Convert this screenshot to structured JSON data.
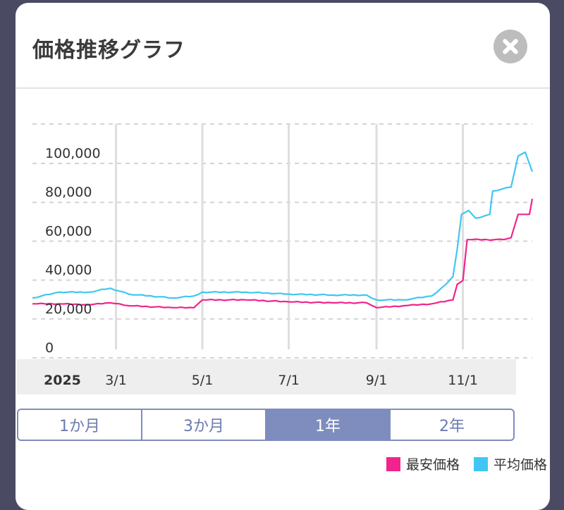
{
  "modal": {
    "title": "価格推移グラフ",
    "close_icon": "close-icon"
  },
  "range_tabs": [
    {
      "label": "1か月",
      "active": false
    },
    {
      "label": "3か月",
      "active": false
    },
    {
      "label": "1年",
      "active": true
    },
    {
      "label": "2年",
      "active": false
    }
  ],
  "legend": [
    {
      "label": "最安価格",
      "color": "#f0248c"
    },
    {
      "label": "平均価格",
      "color": "#41c6f3"
    }
  ],
  "chart_data": {
    "type": "line",
    "year_label": "2025",
    "x_ticks": [
      "3/1",
      "5/1",
      "7/1",
      "9/1",
      "11/1"
    ],
    "y_ticks": [
      "100,000",
      "80,000",
      "60,000",
      "40,000",
      "20,000",
      "0"
    ],
    "ylim": [
      0,
      110000
    ],
    "xlim": [
      "2025-01-01",
      "2025-12-20"
    ],
    "grid": true,
    "legend_position": "bottom-right",
    "series": [
      {
        "name": "最安価格",
        "color": "#f0248c",
        "points": [
          [
            "2025-01-01",
            22000
          ],
          [
            "2025-01-20",
            22000
          ],
          [
            "2025-02-10",
            21500
          ],
          [
            "2025-02-25",
            22500
          ],
          [
            "2025-03-10",
            21000
          ],
          [
            "2025-04-10",
            20000
          ],
          [
            "2025-04-25",
            20000
          ],
          [
            "2025-05-01",
            24000
          ],
          [
            "2025-06-01",
            24000
          ],
          [
            "2025-07-01",
            23000
          ],
          [
            "2025-08-01",
            22500
          ],
          [
            "2025-08-25",
            22500
          ],
          [
            "2025-09-01",
            20000
          ],
          [
            "2025-09-20",
            21000
          ],
          [
            "2025-10-10",
            22000
          ],
          [
            "2025-10-25",
            24000
          ],
          [
            "2025-10-28",
            32000
          ],
          [
            "2025-11-01",
            34000
          ],
          [
            "2025-11-04",
            55000
          ],
          [
            "2025-11-30",
            55000
          ],
          [
            "2025-12-05",
            56000
          ],
          [
            "2025-12-10",
            68000
          ],
          [
            "2025-12-18",
            68000
          ],
          [
            "2025-12-20",
            76000
          ]
        ]
      },
      {
        "name": "平均価格",
        "color": "#41c6f3",
        "points": [
          [
            "2025-01-01",
            25000
          ],
          [
            "2025-01-20",
            28000
          ],
          [
            "2025-02-10",
            28000
          ],
          [
            "2025-02-25",
            30000
          ],
          [
            "2025-03-10",
            27000
          ],
          [
            "2025-04-10",
            25000
          ],
          [
            "2025-04-25",
            26000
          ],
          [
            "2025-05-01",
            28000
          ],
          [
            "2025-06-01",
            28000
          ],
          [
            "2025-07-01",
            27000
          ],
          [
            "2025-08-01",
            26500
          ],
          [
            "2025-08-25",
            26500
          ],
          [
            "2025-09-01",
            24000
          ],
          [
            "2025-09-20",
            24000
          ],
          [
            "2025-10-10",
            26000
          ],
          [
            "2025-10-20",
            32000
          ],
          [
            "2025-10-25",
            36000
          ],
          [
            "2025-10-28",
            50000
          ],
          [
            "2025-10-31",
            68000
          ],
          [
            "2025-11-05",
            70000
          ],
          [
            "2025-11-10",
            66000
          ],
          [
            "2025-11-20",
            68000
          ],
          [
            "2025-11-22",
            80000
          ],
          [
            "2025-12-05",
            82000
          ],
          [
            "2025-12-10",
            98000
          ],
          [
            "2025-12-15",
            100000
          ],
          [
            "2025-12-20",
            90000
          ]
        ]
      }
    ]
  }
}
